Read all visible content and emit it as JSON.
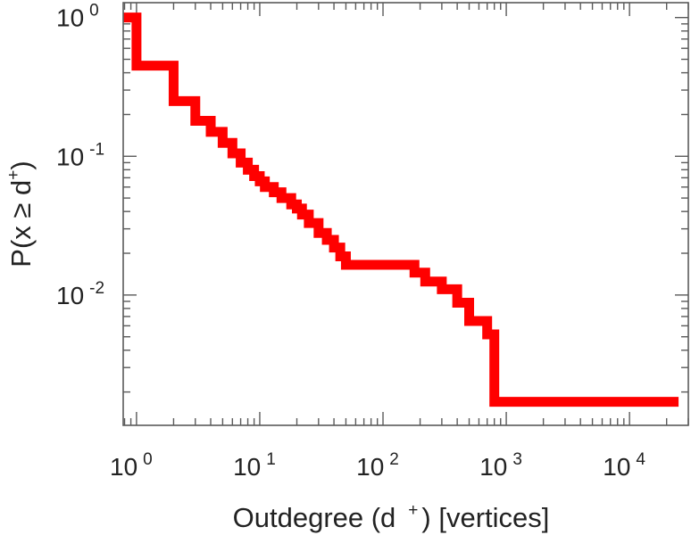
{
  "chart_data": {
    "type": "line",
    "step": true,
    "scale": {
      "x": "log",
      "y": "log"
    },
    "xlim": [
      0.78,
      30000
    ],
    "ylim": [
      0.00115,
      1.28
    ],
    "grid": false,
    "legend": "none",
    "xlabel": {
      "main": "Outdegree (d",
      "sup": "+",
      "tail": ") [vertices]"
    },
    "ylabel": {
      "main": "P(x ≥ d",
      "sup": "+",
      "tail": ")"
    },
    "x_ticks": [
      {
        "value": 1,
        "base": "10",
        "exp": "0"
      },
      {
        "value": 10,
        "base": "10",
        "exp": "1"
      },
      {
        "value": 100,
        "base": "10",
        "exp": "2"
      },
      {
        "value": 1000,
        "base": "10",
        "exp": "3"
      },
      {
        "value": 10000,
        "base": "10",
        "exp": "4"
      }
    ],
    "y_ticks": [
      {
        "value": 1,
        "base": "10",
        "exp": "0"
      },
      {
        "value": 0.1,
        "base": "10",
        "exp": "-1"
      },
      {
        "value": 0.01,
        "base": "10",
        "exp": "-2"
      }
    ],
    "series": [
      {
        "color": "#ff0000",
        "x": [
          0.78,
          1,
          2,
          3,
          4,
          5,
          6,
          7,
          8,
          9,
          10,
          11,
          13,
          15,
          18,
          20,
          22,
          25,
          30,
          35,
          40,
          45,
          50,
          180,
          220,
          300,
          400,
          500,
          700,
          800,
          25000
        ],
        "y": [
          1.0,
          0.45,
          0.25,
          0.18,
          0.15,
          0.125,
          0.105,
          0.09,
          0.08,
          0.072,
          0.066,
          0.06,
          0.055,
          0.05,
          0.045,
          0.042,
          0.038,
          0.033,
          0.028,
          0.025,
          0.022,
          0.019,
          0.0165,
          0.0145,
          0.0125,
          0.011,
          0.0088,
          0.0065,
          0.0052,
          0.0017,
          0.0017
        ]
      }
    ]
  }
}
